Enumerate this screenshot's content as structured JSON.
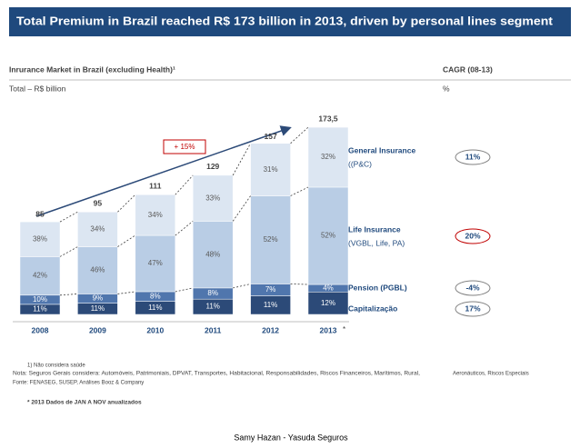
{
  "chart_data": {
    "type": "bar",
    "stacked": true,
    "title": "Total Premium in Brazil reached R$ 173 billion in 2013, driven by personal lines segment",
    "subtitle": "Inrurance Market in Brazil (excluding Health)¹",
    "unit_label": "Total – R$ billion",
    "cagr_header": "CAGR (08-13)",
    "cagr_unit": "%",
    "annotation": "+ 15%",
    "categories": [
      "2008",
      "2009",
      "2010",
      "2011",
      "2012",
      "2013"
    ],
    "category_note": "*",
    "totals": {
      "values": [
        85,
        95,
        111,
        129,
        157,
        173.5
      ],
      "value_labels": [
        "85",
        "95",
        "111",
        "129",
        "157",
        "173,5"
      ]
    },
    "series": [
      {
        "name": "Capitalização",
        "color": "#2c4a78",
        "values": [
          11,
          11,
          11,
          11,
          11,
          12
        ],
        "value_labels": [
          "11%",
          "11%",
          "11%",
          "11%",
          "11%",
          "12%"
        ],
        "cagr": 17,
        "cagr_label": "17%"
      },
      {
        "name": "Pension (PGBL)",
        "color": "#5076ad",
        "values": [
          10,
          9,
          8,
          8,
          7,
          4
        ],
        "value_labels": [
          "10%",
          "9%",
          "8%",
          "8%",
          "7%",
          "4%"
        ],
        "cagr": -4,
        "cagr_label": "-4%"
      },
      {
        "name": "Life Insurance",
        "name_detail": "(VGBL, Life, PA)",
        "color": "#b9cde5",
        "values": [
          42,
          46,
          47,
          48,
          52,
          52
        ],
        "value_labels": [
          "42%",
          "46%",
          "47%",
          "48%",
          "52%",
          "52%"
        ],
        "cagr": 20,
        "cagr_label": "20%"
      },
      {
        "name": "General Insurance",
        "name_detail": "((P&C)",
        "color": "#dce6f2",
        "values": [
          38,
          34,
          34,
          33,
          31,
          32
        ],
        "value_labels": [
          "38%",
          "34%",
          "34%",
          "33%",
          "31%",
          "32%"
        ],
        "cagr": 11,
        "cagr_label": "11%"
      }
    ],
    "notes": {
      "note1": "1)   Não considera saúde",
      "note2": "Nota:   Seguros Gerais considera: Automóveis, Patrimoniais, DPVAT, Transportes, Habitacional, Responsabilidades, Riscos Financeiros, Marítimos, Rural,",
      "note2b": "Aeronáuticos, Riscos Especiais",
      "source": "Fonte:   FENASEG, SUSEP, Análises Booz & Company",
      "asterisk": "* 2013 Dados de JAN A NOV anualizados"
    },
    "footer": "Samy Hazan -  Yasuda Seguros"
  }
}
